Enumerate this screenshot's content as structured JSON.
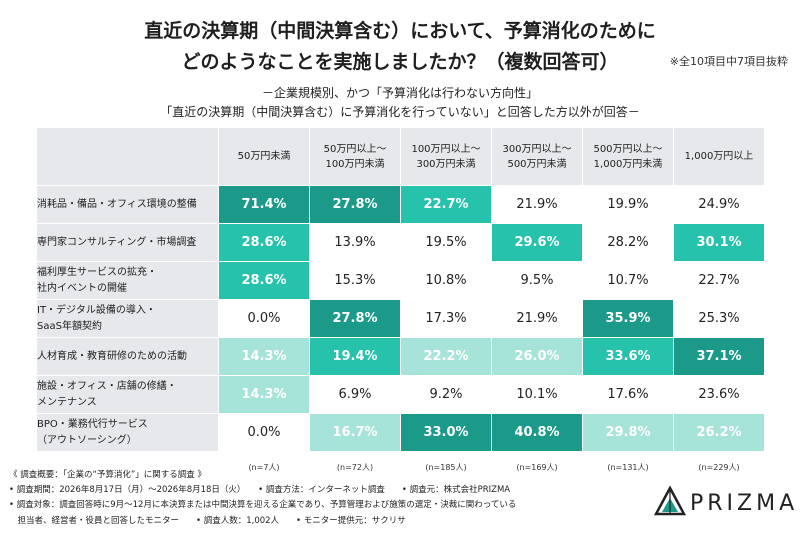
{
  "header": {
    "title_line1": "直近の決算期（中間決算含む）において、予算消化のために",
    "title_line2": "どのようなことを実施しましたか？（複数回答可）",
    "note": "※全10項目中7項目抜粋",
    "subtitle_line1": "－企業規模別、かつ「予算消化は行わない方向性」",
    "subtitle_line2": "「直近の決算期（中間決算含む）に予算消化を行っていない」と回答した方以外が回答－"
  },
  "chart_data": {
    "type": "table",
    "columns": [
      {
        "line1": "50万円未満",
        "line2": "",
        "n": "(n=7人)"
      },
      {
        "line1": "50万円以上～",
        "line2": "100万円未満",
        "n": "(n=72人)"
      },
      {
        "line1": "100万円以上～",
        "line2": "300万円未満",
        "n": "(n=185人)"
      },
      {
        "line1": "300万円以上～",
        "line2": "500万円未満",
        "n": "(n=169人)"
      },
      {
        "line1": "500万円以上～",
        "line2": "1,000万円未満",
        "n": "(n=131人)"
      },
      {
        "line1": "1,000万円以上",
        "line2": "",
        "n": "(n=229人)"
      }
    ],
    "rows": [
      {
        "label1": "消耗品・備品・オフィス環境の整備",
        "label2": "",
        "values": [
          "71.4%",
          "27.8%",
          "22.7%",
          "21.9%",
          "19.9%",
          "24.9%"
        ],
        "shades": [
          "dark",
          "dark",
          "mid",
          "none",
          "none",
          "none"
        ]
      },
      {
        "label1": "専門家コンサルティング・市場調査",
        "label2": "",
        "values": [
          "28.6%",
          "13.9%",
          "19.5%",
          "29.6%",
          "28.2%",
          "30.1%"
        ],
        "shades": [
          "mid",
          "none",
          "none",
          "mid",
          "none",
          "mid"
        ]
      },
      {
        "label1": "福利厚生サービスの拡充・",
        "label2": "社内イベントの開催",
        "values": [
          "28.6%",
          "15.3%",
          "10.8%",
          "9.5%",
          "10.7%",
          "22.7%"
        ],
        "shades": [
          "mid",
          "none",
          "none",
          "none",
          "none",
          "none"
        ]
      },
      {
        "label1": "IT・デジタル設備の導入・",
        "label2": "SaaS年額契約",
        "values": [
          "0.0%",
          "27.8%",
          "17.3%",
          "21.9%",
          "35.9%",
          "25.3%"
        ],
        "shades": [
          "none",
          "dark",
          "none",
          "none",
          "dark",
          "none"
        ]
      },
      {
        "label1": "人材育成・教育研修のための活動",
        "label2": "",
        "values": [
          "14.3%",
          "19.4%",
          "22.2%",
          "26.0%",
          "33.6%",
          "37.1%"
        ],
        "shades": [
          "light",
          "mid",
          "light",
          "light",
          "mid",
          "dark"
        ]
      },
      {
        "label1": "施設・オフィス・店舗の修繕・",
        "label2": "メンテナンス",
        "values": [
          "14.3%",
          "6.9%",
          "9.2%",
          "10.1%",
          "17.6%",
          "23.6%"
        ],
        "shades": [
          "light",
          "none",
          "none",
          "none",
          "none",
          "none"
        ]
      },
      {
        "label1": "BPO・業務代行サービス",
        "label2": "（アウトソーシング）",
        "values": [
          "0.0%",
          "16.7%",
          "33.0%",
          "40.8%",
          "29.8%",
          "26.2%"
        ],
        "shades": [
          "none",
          "light",
          "dark",
          "dark",
          "light",
          "light"
        ]
      }
    ],
    "colors": {
      "dark": "#1b9a8a",
      "mid": "#26c2ab",
      "light": "#a6e3d9",
      "header": "#e6e8eb"
    }
  },
  "footer": {
    "line1": "《 調査概要：「企業の“予算消化”」に関する調査 》",
    "line2": "• 調査期間：2026年8月17日（月）～2026年8月18日（火）　　• 調査方法：インターネット調査　　• 調査元：株式会社PRIZMA",
    "line3": "• 調査対象：調査回答時に9月～12月に本決算または中間決算を迎える企業であり、予算管理および施策の選定・決裁に関わっている",
    "line4": "　担当者、経営者・役員と回答したモニター　　• 調査人数：1,002人　　• モニター提供元：サクリサ"
  },
  "logo": {
    "text": "PRIZMA"
  }
}
